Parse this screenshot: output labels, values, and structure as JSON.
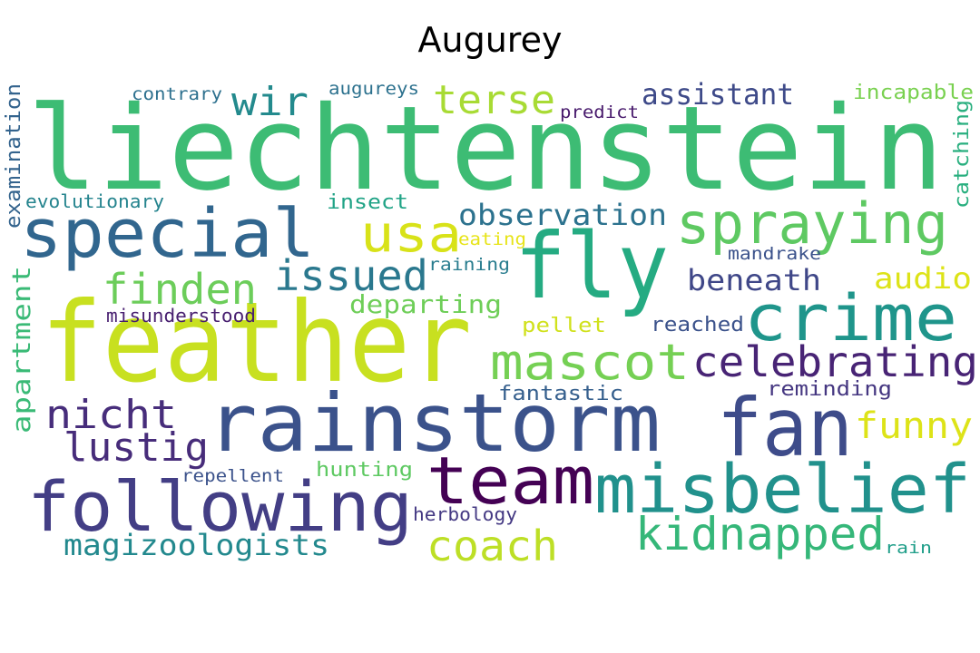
{
  "title": "Augurey",
  "words": [
    {
      "text": "liechtenstein",
      "color": "#3dbc74"
    },
    {
      "text": "feather",
      "color": "#c8e020"
    },
    {
      "text": "rainstorm",
      "color": "#3b528b"
    },
    {
      "text": "fan",
      "color": "#3e4c8a"
    },
    {
      "text": "fly",
      "color": "#25ab82"
    },
    {
      "text": "following",
      "color": "#433e85"
    },
    {
      "text": "misbelief",
      "color": "#21918c"
    },
    {
      "text": "team",
      "color": "#440154"
    },
    {
      "text": "crime",
      "color": "#1f958b"
    },
    {
      "text": "special",
      "color": "#31668e"
    },
    {
      "text": "spraying",
      "color": "#5ec962"
    },
    {
      "text": "mascot",
      "color": "#75d054"
    },
    {
      "text": "celebrating",
      "color": "#482475"
    },
    {
      "text": "kidnapped",
      "color": "#35b779"
    },
    {
      "text": "coach",
      "color": "#bddf26"
    },
    {
      "text": "usa",
      "color": "#d8e219"
    },
    {
      "text": "finden",
      "color": "#6ccd5a"
    },
    {
      "text": "issued",
      "color": "#2a788e"
    },
    {
      "text": "nicht",
      "color": "#472d7b"
    },
    {
      "text": "lustig",
      "color": "#472c7a"
    },
    {
      "text": "funny",
      "color": "#dde318"
    },
    {
      "text": "terse",
      "color": "#a8db34"
    },
    {
      "text": "wir",
      "color": "#238a8d"
    },
    {
      "text": "magizoologists",
      "color": "#23898e"
    },
    {
      "text": "observation",
      "color": "#2c728e"
    },
    {
      "text": "assistant",
      "color": "#3e4a89"
    },
    {
      "text": "beneath",
      "color": "#3f4788"
    },
    {
      "text": "audio",
      "color": "#dde318"
    },
    {
      "text": "departing",
      "color": "#6ece58"
    },
    {
      "text": "apartment",
      "color": "#3aba76"
    },
    {
      "text": "examination",
      "color": "#33638d"
    },
    {
      "text": "catching",
      "color": "#29af7f"
    },
    {
      "text": "fantastic",
      "color": "#355f8d"
    },
    {
      "text": "reminding",
      "color": "#453781"
    },
    {
      "text": "incapable",
      "color": "#7ad151"
    },
    {
      "text": "misunderstood",
      "color": "#481f70"
    },
    {
      "text": "pellet",
      "color": "#d0e11c"
    },
    {
      "text": "reached",
      "color": "#3b528b"
    },
    {
      "text": "hunting",
      "color": "#5ec962"
    },
    {
      "text": "evolutionary",
      "color": "#25848e"
    },
    {
      "text": "insect",
      "color": "#20a386"
    },
    {
      "text": "contrary",
      "color": "#2d708e"
    },
    {
      "text": "augureys",
      "color": "#2c718e"
    },
    {
      "text": "predict",
      "color": "#481a6c"
    },
    {
      "text": "eating",
      "color": "#e7e419"
    },
    {
      "text": "raining",
      "color": "#287c8e"
    },
    {
      "text": "mandrake",
      "color": "#3b528b"
    },
    {
      "text": "repellent",
      "color": "#3b528b"
    },
    {
      "text": "herbology",
      "color": "#443983"
    },
    {
      "text": "rain",
      "color": "#1f9e89"
    }
  ]
}
